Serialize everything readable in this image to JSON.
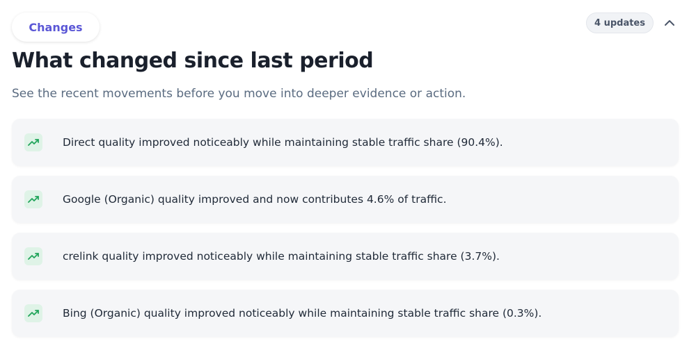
{
  "header": {
    "tab": "Changes",
    "title": "What changed since last period",
    "subtitle": "See the recent movements before you move into deeper evidence or action.",
    "badge": "4 updates"
  },
  "items": [
    "Direct quality improved noticeably while maintaining stable traffic share (90.4%).",
    "Google (Organic) quality improved and now contributes 4.6% of traffic.",
    "crelink quality improved noticeably while maintaining stable traffic share (3.7%).",
    "Bing (Organic) quality improved noticeably while maintaining stable traffic share (0.3%)."
  ]
}
